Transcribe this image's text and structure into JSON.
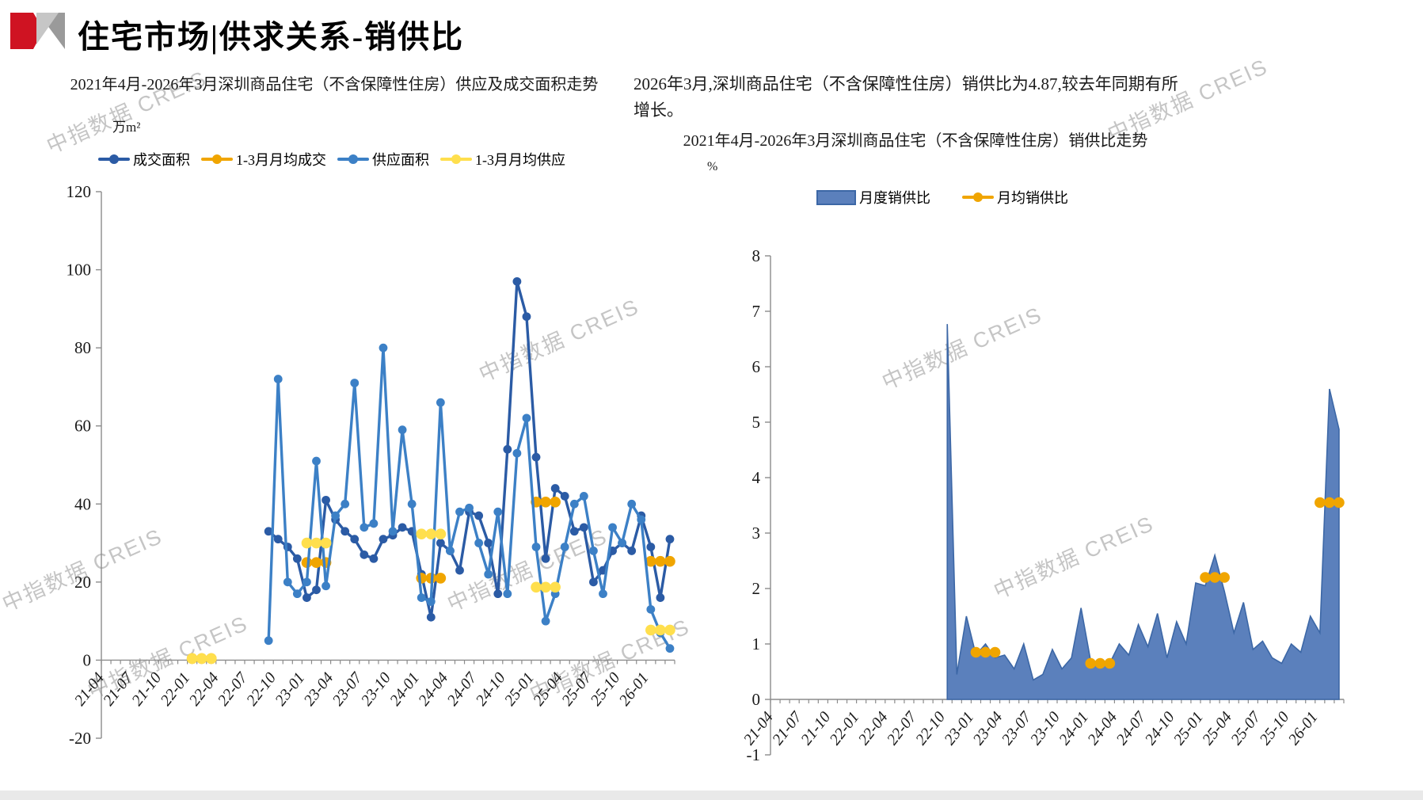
{
  "page": {
    "header": {
      "title": "住宅市场|供求关系-销供比"
    },
    "watermark_text": "中指数据 CREIS",
    "right_note": "2026年3月,深圳商品住宅（不含保障性住房）销供比为4.87,较去年同期有所增长。"
  },
  "chart_data": [
    {
      "type": "line",
      "title": "2021年4月-2026年3月深圳商品住宅（不含保障性住房）供应及成交面积走势",
      "unit": "万m²",
      "x_start": "21-04",
      "n_months": 60,
      "x_tick_labels": [
        "21-04",
        "21-07",
        "21-10",
        "22-01",
        "22-04",
        "22-07",
        "22-10",
        "23-01",
        "23-04",
        "23-07",
        "23-10",
        "24-01",
        "24-04",
        "24-07",
        "24-10",
        "25-01",
        "25-04",
        "25-07",
        "25-10",
        "26-01"
      ],
      "ylim": [
        -20,
        120
      ],
      "y_ticks": [
        120,
        100,
        80,
        60,
        40,
        20,
        0,
        -20
      ],
      "grid": false,
      "legend_position": "top",
      "series": [
        {
          "name": "成交面积",
          "kind": "line",
          "color": "#2B5BA5",
          "values": [
            null,
            null,
            null,
            null,
            null,
            null,
            null,
            null,
            null,
            null,
            null,
            null,
            null,
            null,
            null,
            null,
            null,
            33,
            31,
            29,
            26,
            16,
            18,
            41,
            36,
            33,
            31,
            27,
            26,
            31,
            32,
            34,
            33,
            22,
            11,
            30,
            28,
            23,
            38,
            37,
            30,
            17,
            54,
            97,
            88,
            52,
            26,
            44,
            42,
            33,
            34,
            20,
            23,
            28,
            30,
            28,
            37,
            29,
            16,
            31
          ]
        },
        {
          "name": "1-3月月均成交",
          "kind": "line",
          "color": "#F0A500",
          "values": [
            null,
            null,
            null,
            null,
            null,
            null,
            null,
            null,
            null,
            0.4,
            0.4,
            0.4,
            null,
            null,
            null,
            null,
            null,
            null,
            null,
            null,
            null,
            25,
            25,
            25,
            null,
            null,
            null,
            null,
            null,
            null,
            null,
            null,
            null,
            21,
            21,
            21,
            null,
            null,
            null,
            null,
            null,
            null,
            null,
            null,
            null,
            40.5,
            40.5,
            40.5,
            null,
            null,
            null,
            null,
            null,
            null,
            null,
            null,
            null,
            25.3,
            25.3,
            25.3
          ]
        },
        {
          "name": "供应面积",
          "kind": "line",
          "color": "#3C80C6",
          "values": [
            null,
            null,
            null,
            null,
            null,
            null,
            null,
            null,
            null,
            null,
            null,
            null,
            null,
            null,
            null,
            null,
            null,
            5,
            72,
            20,
            17,
            20,
            51,
            19,
            37,
            40,
            71,
            34,
            35,
            80,
            33,
            59,
            40,
            16,
            15,
            66,
            28,
            38,
            39,
            30,
            22,
            38,
            17,
            53,
            62,
            29,
            10,
            17,
            29,
            40,
            42,
            28,
            17,
            34,
            30,
            40,
            36,
            13,
            7,
            3
          ]
        },
        {
          "name": "1-3月月均供应",
          "kind": "line",
          "color": "#FFDF4D",
          "values": [
            null,
            null,
            null,
            null,
            null,
            null,
            null,
            null,
            null,
            0.4,
            0.4,
            0.4,
            null,
            null,
            null,
            null,
            null,
            null,
            null,
            null,
            null,
            30,
            30,
            30,
            null,
            null,
            null,
            null,
            null,
            null,
            null,
            null,
            null,
            32.3,
            32.3,
            32.3,
            null,
            null,
            null,
            null,
            null,
            null,
            null,
            null,
            null,
            18.7,
            18.7,
            18.7,
            null,
            null,
            null,
            null,
            null,
            null,
            null,
            null,
            null,
            7.7,
            7.7,
            7.7
          ]
        }
      ]
    },
    {
      "type": "area",
      "title": "2021年4月-2026年3月深圳商品住宅（不含保障性住房）销供比走势",
      "unit": "%",
      "highlight_value": "4.87",
      "x_start": "21-04",
      "n_months": 60,
      "x_tick_labels": [
        "21-04",
        "21-07",
        "21-10",
        "22-01",
        "22-04",
        "22-07",
        "22-10",
        "23-01",
        "23-04",
        "23-07",
        "23-10",
        "24-01",
        "24-04",
        "24-07",
        "24-10",
        "25-01",
        "25-04",
        "25-07",
        "25-10",
        "26-01"
      ],
      "ylim": [
        -1,
        8
      ],
      "y_ticks": [
        8,
        7,
        6,
        5,
        4,
        3,
        2,
        1,
        0,
        -1
      ],
      "grid": false,
      "legend_position": "top",
      "series": [
        {
          "name": "月度销供比",
          "kind": "area",
          "color": "#3C67A6",
          "fill": "#5B80BC",
          "values": [
            null,
            null,
            null,
            null,
            null,
            null,
            null,
            null,
            null,
            null,
            null,
            null,
            null,
            null,
            null,
            null,
            null,
            null,
            6.77,
            0.45,
            1.5,
            0.8,
            1.0,
            0.75,
            0.8,
            0.55,
            1.0,
            0.35,
            0.45,
            0.9,
            0.55,
            0.75,
            1.65,
            0.7,
            0.6,
            0.65,
            1.0,
            0.8,
            1.35,
            0.95,
            1.55,
            0.75,
            1.4,
            1.0,
            2.1,
            2.05,
            2.6,
            1.95,
            1.2,
            1.75,
            0.9,
            1.05,
            0.75,
            0.65,
            1.0,
            0.85,
            1.5,
            1.2,
            5.6,
            4.87
          ]
        },
        {
          "name": "月均销供比",
          "kind": "line",
          "color": "#F0A500",
          "values": [
            null,
            null,
            null,
            null,
            null,
            null,
            null,
            null,
            null,
            null,
            null,
            null,
            null,
            null,
            null,
            null,
            null,
            null,
            null,
            null,
            null,
            0.85,
            0.85,
            0.85,
            null,
            null,
            null,
            null,
            null,
            null,
            null,
            null,
            null,
            0.65,
            0.65,
            0.65,
            null,
            null,
            null,
            null,
            null,
            null,
            null,
            null,
            null,
            2.2,
            2.2,
            2.2,
            null,
            null,
            null,
            null,
            null,
            null,
            null,
            null,
            null,
            3.55,
            3.55,
            3.55
          ]
        }
      ]
    }
  ]
}
